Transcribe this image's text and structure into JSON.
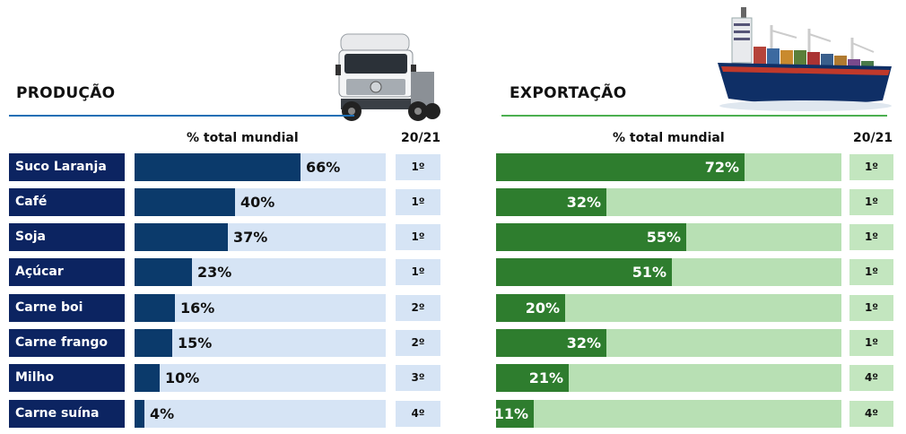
{
  "chart_data": [
    {
      "type": "bar",
      "heading": "PRODUÇÃO",
      "value_header": "% total mundial",
      "rank_header": "20/21",
      "categories": [
        "Suco Laranja",
        "Café",
        "Soja",
        "Açúcar",
        "Carne boi",
        "Carne frango",
        "Milho",
        "Carne suína"
      ],
      "values": [
        66,
        40,
        37,
        23,
        16,
        15,
        10,
        4
      ],
      "labels": [
        "66%",
        "40%",
        "37%",
        "23%",
        "16%",
        "15%",
        "10%",
        "4%"
      ],
      "ranks": [
        "1º",
        "1º",
        "1º",
        "1º",
        "2º",
        "2º",
        "3º",
        "4º"
      ],
      "xlim": [
        0,
        100
      ],
      "colors": {
        "fill": "#0b3a6b",
        "track": "#d6e4f5",
        "label_bg": "#0c2461"
      },
      "icon": "truck-icon"
    },
    {
      "type": "bar",
      "heading": "EXPORTAÇÃO",
      "value_header": "% total mundial",
      "rank_header": "20/21",
      "categories": [
        "Suco Laranja",
        "Café",
        "Soja",
        "Açúcar",
        "Carne boi",
        "Carne frango",
        "Milho",
        "Carne suína"
      ],
      "values": [
        72,
        32,
        55,
        51,
        20,
        32,
        21,
        11
      ],
      "labels": [
        "72%",
        "32%",
        "55%",
        "51%",
        "20%",
        "32%",
        "21%",
        "11%"
      ],
      "ranks": [
        "1º",
        "1º",
        "1º",
        "1º",
        "1º",
        "1º",
        "4º",
        "4º"
      ],
      "xlim": [
        0,
        100
      ],
      "colors": {
        "fill": "#2e7d2e",
        "track": "#b8e0b4"
      },
      "icon": "cargo-ship-icon"
    }
  ]
}
